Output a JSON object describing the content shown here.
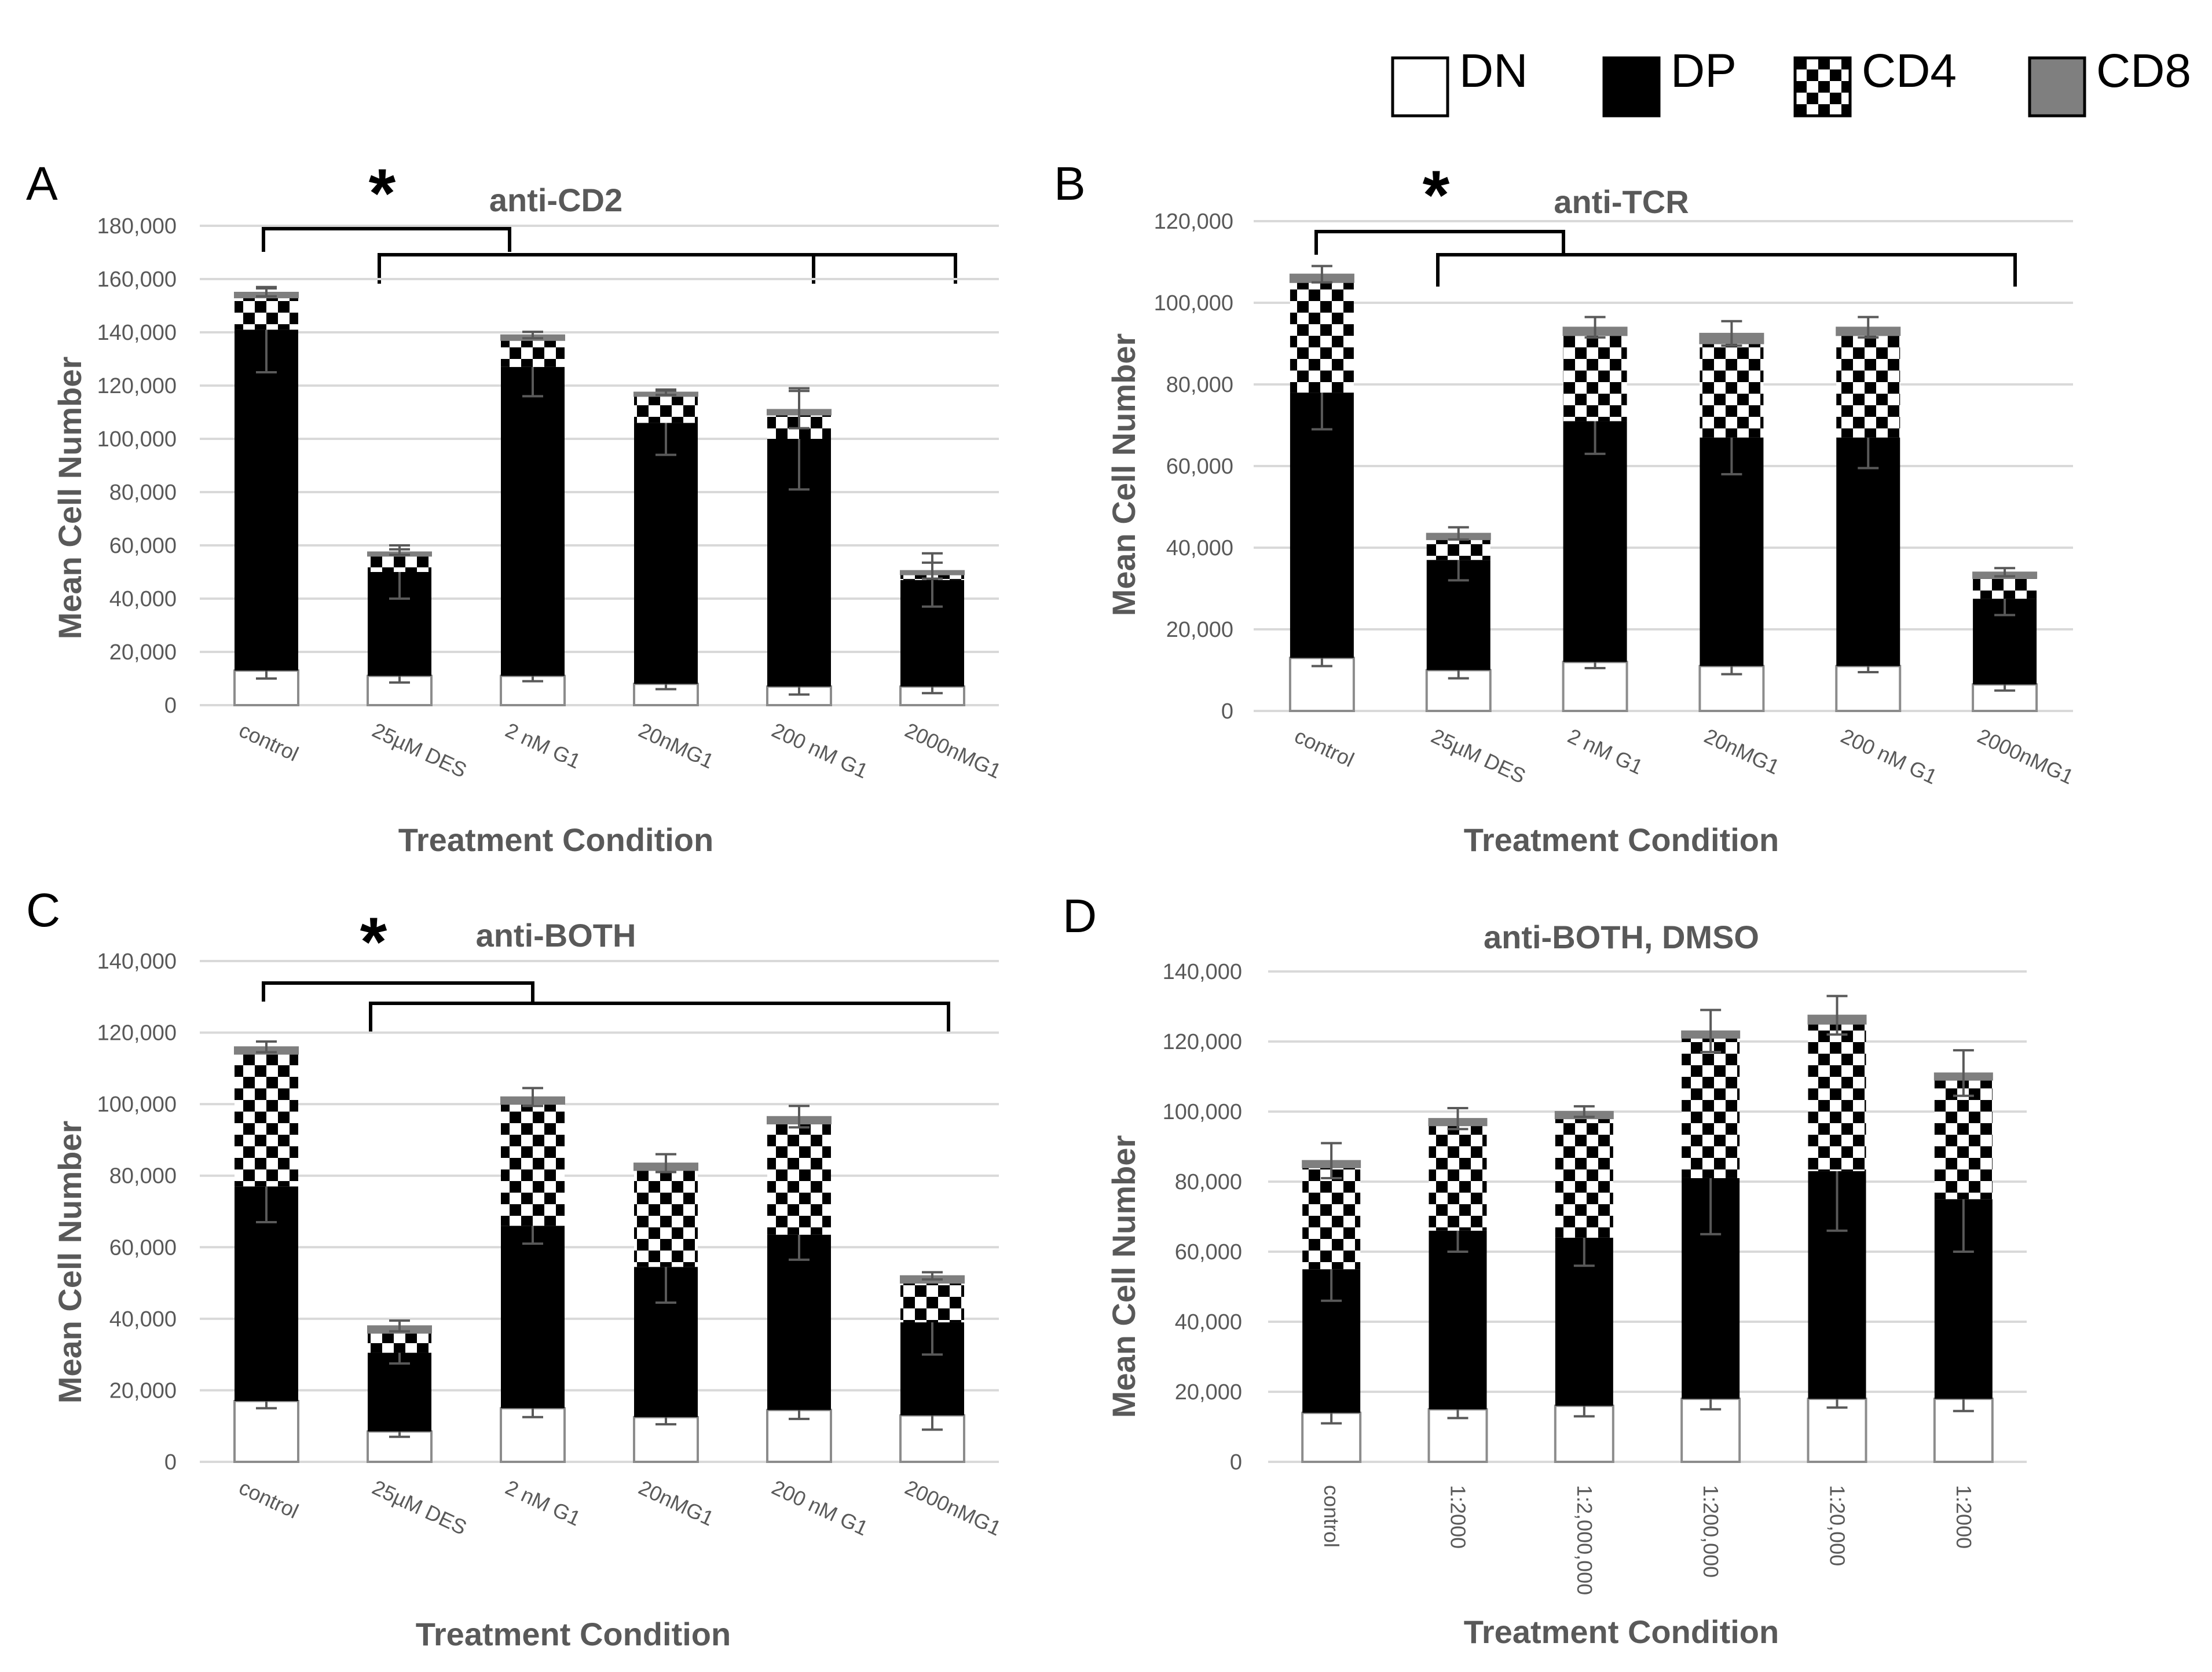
{
  "legend": {
    "placement": "top-right",
    "items": [
      {
        "label": "DN",
        "pattern": "white"
      },
      {
        "label": "DP",
        "pattern": "black"
      },
      {
        "label": "CD4",
        "pattern": "checker"
      },
      {
        "label": "CD8",
        "pattern": "gray"
      }
    ]
  },
  "colors": {
    "DN": "#ffffff",
    "DP": "#000000",
    "CD4": "checker",
    "CD8": "#7f7f7f",
    "grid": "#d9d9d9",
    "text": "#595959"
  },
  "chart_data": [
    {
      "panel": "A",
      "type": "bar",
      "stacked": true,
      "title": "anti-CD2",
      "xlabel": "Treatment Condition",
      "ylabel": "Mean Cell Number",
      "ylim": [
        0,
        180000
      ],
      "yticks": [
        "0",
        "20,000",
        "40,000",
        "60,000",
        "80,000",
        "100,000",
        "120,000",
        "140,000",
        "160,000",
        "180,000"
      ],
      "categories": [
        "control",
        "25µM DES",
        "2 nM G1",
        "20nMG1",
        "200 nM G1",
        "2000nMG1"
      ],
      "series": [
        {
          "name": "DN",
          "values": [
            13000,
            11000,
            11000,
            8000,
            7000,
            7000
          ],
          "err": [
            3000,
            2500,
            2000,
            2000,
            3000,
            2500
          ]
        },
        {
          "name": "DP",
          "values": [
            128000,
            39000,
            116000,
            98000,
            93000,
            40000
          ],
          "err": [
            16000,
            10000,
            11000,
            12000,
            19000,
            10000
          ]
        },
        {
          "name": "CD4",
          "values": [
            12000,
            6000,
            10000,
            10000,
            9000,
            2000
          ],
          "err": [
            0,
            0,
            0,
            0,
            0,
            0
          ]
        },
        {
          "name": "CD8",
          "values": [
            2000,
            1500,
            2000,
            1500,
            2000,
            1500
          ],
          "err": [
            1500,
            1000,
            1200,
            1000,
            7000,
            3000
          ]
        }
      ],
      "significance": {
        "marker": "*"
      }
    },
    {
      "panel": "B",
      "type": "bar",
      "stacked": true,
      "title": "anti-TCR",
      "xlabel": "Treatment Condition",
      "ylabel": "Mean Cell Number",
      "ylim": [
        0,
        120000
      ],
      "yticks": [
        "0",
        "20,000",
        "40,000",
        "60,000",
        "80,000",
        "100,000",
        "120,000"
      ],
      "categories": [
        "control",
        "25µM DES",
        "2 nM G1",
        "20nMG1",
        "200 nM G1",
        "2000nMG1"
      ],
      "series": [
        {
          "name": "DN",
          "values": [
            13000,
            10000,
            12000,
            11000,
            11000,
            6500
          ],
          "err": [
            2000,
            2000,
            1500,
            2000,
            1500,
            1500
          ]
        },
        {
          "name": "DP",
          "values": [
            65000,
            27000,
            59000,
            56000,
            56000,
            21000
          ],
          "err": [
            9000,
            5000,
            8000,
            9000,
            7500,
            4000
          ]
        },
        {
          "name": "CD4",
          "values": [
            27000,
            5000,
            21000,
            23000,
            25000,
            5000
          ],
          "err": [
            0,
            0,
            0,
            0,
            0,
            0
          ]
        },
        {
          "name": "CD8",
          "values": [
            2000,
            1500,
            2000,
            2500,
            2000,
            1500
          ],
          "err": [
            2000,
            1500,
            2500,
            3000,
            2500,
            1000
          ]
        }
      ],
      "significance": {
        "marker": "*"
      }
    },
    {
      "panel": "C",
      "type": "bar",
      "stacked": true,
      "title": "anti-BOTH",
      "xlabel": "Treatment Condition",
      "ylabel": "Mean Cell Number",
      "ylim": [
        0,
        140000
      ],
      "yticks": [
        "0",
        "20,000",
        "40,000",
        "60,000",
        "80,000",
        "100,000",
        "120,000",
        "140,000"
      ],
      "categories": [
        "control",
        "25µM DES",
        "2 nM G1",
        "20nMG1",
        "200 nM G1",
        "2000nMG1"
      ],
      "series": [
        {
          "name": "DN",
          "values": [
            17000,
            8500,
            15000,
            12500,
            14500,
            13000
          ],
          "err": [
            2000,
            1500,
            2500,
            2000,
            2500,
            4000
          ]
        },
        {
          "name": "DP",
          "values": [
            60000,
            22000,
            51000,
            42000,
            49000,
            26000
          ],
          "err": [
            10000,
            3000,
            5000,
            10000,
            7000,
            9000
          ]
        },
        {
          "name": "CD4",
          "values": [
            37000,
            5500,
            34000,
            27000,
            31000,
            11000
          ],
          "err": [
            0,
            0,
            0,
            0,
            0,
            0
          ]
        },
        {
          "name": "CD8",
          "values": [
            2000,
            2000,
            2000,
            2000,
            2000,
            2000
          ],
          "err": [
            1500,
            1500,
            2500,
            2500,
            3000,
            1000
          ]
        }
      ],
      "significance": {
        "marker": "*"
      }
    },
    {
      "panel": "D",
      "type": "bar",
      "stacked": true,
      "title": "anti-BOTH, DMSO",
      "xlabel": "Treatment Condition",
      "ylabel": "Mean Cell Number",
      "ylim": [
        0,
        140000
      ],
      "yticks": [
        "0",
        "20,000",
        "40,000",
        "60,000",
        "80,000",
        "100,000",
        "120,000",
        "140,000"
      ],
      "categories": [
        "control",
        "1:2000",
        "1:2,000,000",
        "1:200,000",
        "1:20,000",
        "1:2000"
      ],
      "series": [
        {
          "name": "DN",
          "values": [
            14000,
            15000,
            16000,
            18000,
            18000,
            18000
          ],
          "err": [
            3000,
            2500,
            3000,
            3000,
            2500,
            3500
          ]
        },
        {
          "name": "DP",
          "values": [
            41000,
            51000,
            48000,
            63000,
            65000,
            57000
          ],
          "err": [
            9000,
            6000,
            8000,
            16000,
            17000,
            15000
          ]
        },
        {
          "name": "CD4",
          "values": [
            29000,
            30000,
            34000,
            40000,
            42000,
            34000
          ],
          "err": [
            0,
            0,
            0,
            0,
            0,
            0
          ]
        },
        {
          "name": "CD8",
          "values": [
            2000,
            2000,
            2000,
            2000,
            2500,
            2000
          ],
          "err": [
            5000,
            3000,
            1500,
            6000,
            5500,
            6500
          ]
        }
      ]
    }
  ]
}
